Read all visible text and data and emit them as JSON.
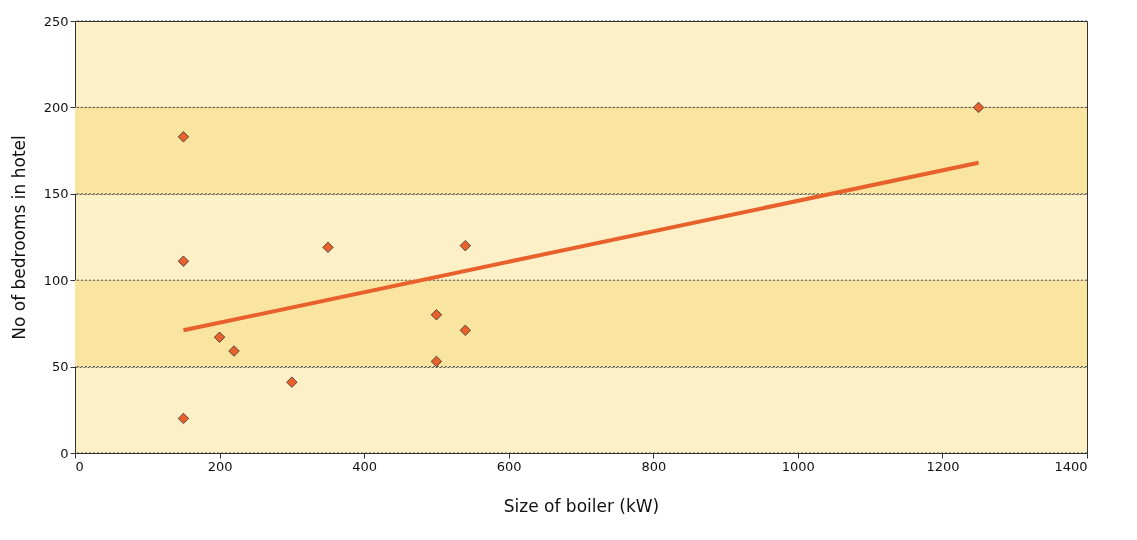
{
  "chart_data": {
    "type": "scatter",
    "xlabel": "Size of boiler (kW)",
    "ylabel": "No of bedrooms in hotel",
    "xlim": [
      0,
      1400
    ],
    "xticks": [
      0,
      200,
      400,
      600,
      800,
      1000,
      1200,
      1400
    ],
    "ylim": [
      0,
      250
    ],
    "yticks": [
      0,
      50,
      100,
      150,
      200,
      250
    ],
    "grid": "y",
    "marker": "diamond",
    "bands": [
      {
        "axis": "y",
        "from": 50,
        "to": 100,
        "color": "#f9e4a0"
      },
      {
        "axis": "y",
        "from": 150,
        "to": 200,
        "color": "#f9e4a0"
      }
    ],
    "series": [
      {
        "color": "#e8602c",
        "x": [
          150,
          150,
          150,
          200,
          220,
          300,
          350,
          500,
          500,
          540,
          540,
          1250
        ],
        "values": [
          183,
          111,
          20,
          67,
          59,
          41,
          119,
          80,
          53,
          120,
          71,
          200
        ]
      },
      {
        "type": "line",
        "color": "#e8602c",
        "x": [
          150,
          1250
        ],
        "values": [
          71,
          168
        ],
        "line_style": "solid",
        "marker": "none"
      }
    ]
  }
}
